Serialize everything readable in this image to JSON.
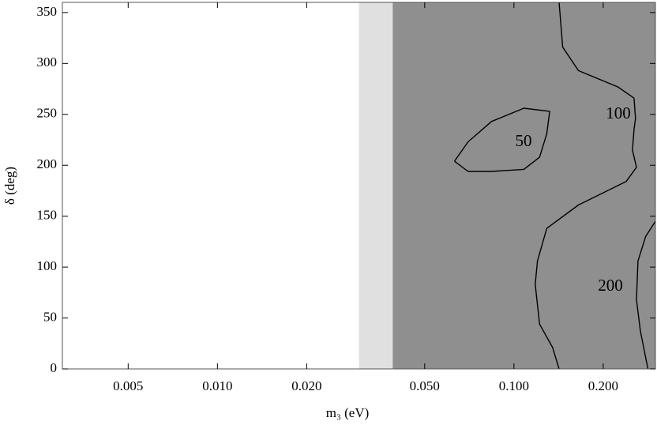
{
  "chart_data": {
    "type": "contour",
    "xlabel": "m₃ (eV)",
    "ylabel": "δ (deg)",
    "xscale": "log",
    "xlim": [
      0.003,
      0.3
    ],
    "ylim": [
      0,
      360
    ],
    "xticks": [
      0.005,
      {
        "value": 0.01,
        "label": "0.010"
      },
      {
        "value": 0.02,
        "label": "0.020"
      },
      {
        "value": 0.05,
        "label": "0.050"
      },
      {
        "value": 0.1,
        "label": "0.100"
      },
      {
        "value": 0.2,
        "label": "0.200"
      }
    ],
    "yticks": [
      0,
      50,
      100,
      150,
      200,
      250,
      300,
      350
    ],
    "regions": [
      {
        "x": [
          0.03,
          0.039
        ],
        "color": "#e0e0e0"
      },
      {
        "x": [
          0.039,
          0.3
        ],
        "color": "#8f8f8f"
      }
    ],
    "contours": [
      {
        "level": 50,
        "x": [
          0.063,
          0.07,
          0.084,
          0.108,
          0.132,
          0.129,
          0.122,
          0.108,
          0.084,
          0.07,
          0.063
        ],
        "y": [
          204,
          223,
          243,
          256,
          253,
          231,
          208,
          196,
          194,
          194,
          204
        ]
      },
      {
        "level": 100,
        "x": [
          0.142,
          0.146,
          0.165,
          0.224,
          0.254,
          0.257,
          0.254,
          0.251,
          0.259,
          0.239,
          0.165,
          0.129,
          0.12,
          0.118,
          0.122,
          0.135,
          0.142
        ],
        "y": [
          360,
          316,
          293,
          277,
          266,
          246,
          235,
          215,
          198,
          184,
          161,
          138,
          106,
          83,
          44,
          21,
          0
        ]
      },
      {
        "level": 200,
        "x": [
          0.3,
          0.278,
          0.262,
          0.259,
          0.267,
          0.283
        ],
        "y": [
          145,
          130,
          106,
          68,
          37,
          0
        ]
      }
    ],
    "line_color": "#000000"
  }
}
